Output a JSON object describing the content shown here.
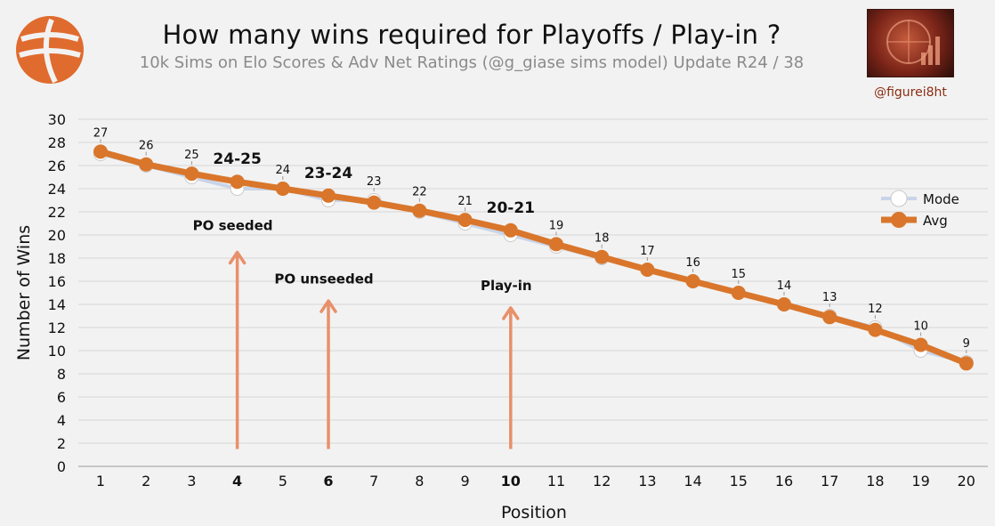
{
  "header": {
    "title": "How many wins required for Playoffs / Play-in ?",
    "subtitle": "10k Sims on Elo Scores & Adv Net Ratings (@g_giase sims model) Update R24 / 38",
    "handle": "@figurei8ht"
  },
  "colors": {
    "avg": "#d9762b",
    "mode_line": "#c8d4ea",
    "arrow": "#e8906a",
    "grid": "#d6d6d6"
  },
  "chart_data": {
    "type": "line",
    "title": "How many wins required for Playoffs / Play-in ?",
    "xlabel": "Position",
    "ylabel": "Number of Wins",
    "ylim": [
      0,
      30
    ],
    "ytick_step": 2,
    "grid": true,
    "legend_position": "right",
    "categories": [
      1,
      2,
      3,
      4,
      5,
      6,
      7,
      8,
      9,
      10,
      11,
      12,
      13,
      14,
      15,
      16,
      17,
      18,
      19,
      20
    ],
    "bold_categories": [
      4,
      6,
      10
    ],
    "series": [
      {
        "name": "Mode",
        "values": [
          27,
          26,
          25,
          24,
          24,
          23,
          23,
          22,
          21,
          20,
          19,
          18,
          17,
          16,
          15,
          14,
          13,
          12,
          10,
          9
        ]
      },
      {
        "name": "Avg",
        "values": [
          27.2,
          26.1,
          25.3,
          24.6,
          24.0,
          23.4,
          22.8,
          22.1,
          21.3,
          20.4,
          19.2,
          18.1,
          17.0,
          16.0,
          15.0,
          14.0,
          12.9,
          11.8,
          10.5,
          8.9
        ]
      }
    ],
    "data_labels": [
      "27",
      "26",
      "25",
      "24-25",
      "24",
      "23-24",
      "23",
      "22",
      "21",
      "20-21",
      "19",
      "18",
      "17",
      "16",
      "15",
      "14",
      "13",
      "12",
      "10",
      "9"
    ],
    "highlight_label_positions": [
      4,
      6,
      10
    ],
    "annotations": [
      {
        "label": "PO seeded",
        "position": 4,
        "text_y": 20.8,
        "arrow_from": 1.5,
        "arrow_to": 18.5
      },
      {
        "label": "PO unseeded",
        "position": 6,
        "text_y": 16.2,
        "arrow_from": 1.5,
        "arrow_to": 14.3
      },
      {
        "label": "Play-in",
        "position": 10,
        "text_y": 15.6,
        "arrow_from": 1.5,
        "arrow_to": 13.7
      }
    ]
  }
}
